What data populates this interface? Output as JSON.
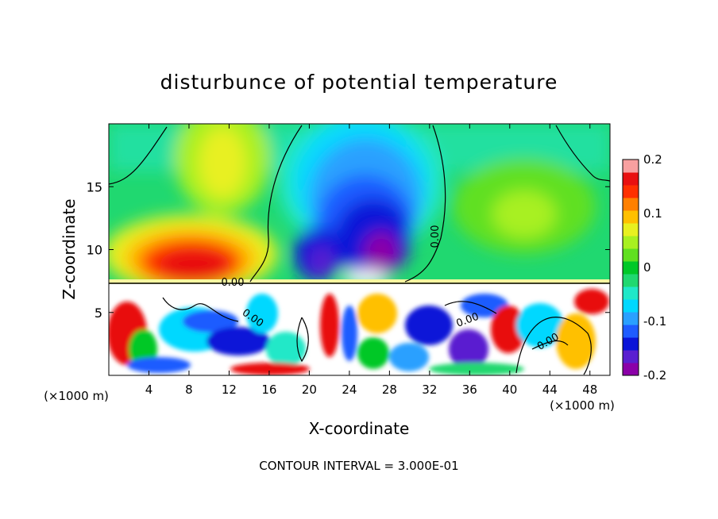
{
  "chart_data": {
    "type": "heatmap",
    "title": "disturbunce of potential temperature",
    "xlabel": "X-coordinate",
    "ylabel": "Z-coordinate",
    "x_unit": "(×1000 m)",
    "z_unit": "(×1000 m)",
    "xlim": [
      0,
      50
    ],
    "ylim": [
      0,
      20
    ],
    "x_ticks": [
      4,
      8,
      12,
      16,
      20,
      24,
      28,
      32,
      36,
      40,
      44,
      48
    ],
    "y_ticks": [
      5,
      10,
      15
    ],
    "colorbar": {
      "min": -0.2,
      "max": 0.2,
      "ticks": [
        "0.2",
        "0.1",
        "0",
        "-0.1",
        "-0.2"
      ],
      "colors": [
        "#8b00a8",
        "#5a1fd0",
        "#0a14d8",
        "#1e5cff",
        "#2aa0ff",
        "#00d8ff",
        "#20e8c8",
        "#20d870",
        "#00c828",
        "#60e020",
        "#a8f020",
        "#e8f020",
        "#ffc000",
        "#ff8000",
        "#ff3000",
        "#e81010",
        "#f8a0a0"
      ]
    },
    "contour_labels": [
      "0.00",
      "0.00",
      "0.00",
      "0.00",
      "0.00"
    ],
    "contour_interval_text": "CONTOUR INTERVAL = 3.000E-01"
  }
}
